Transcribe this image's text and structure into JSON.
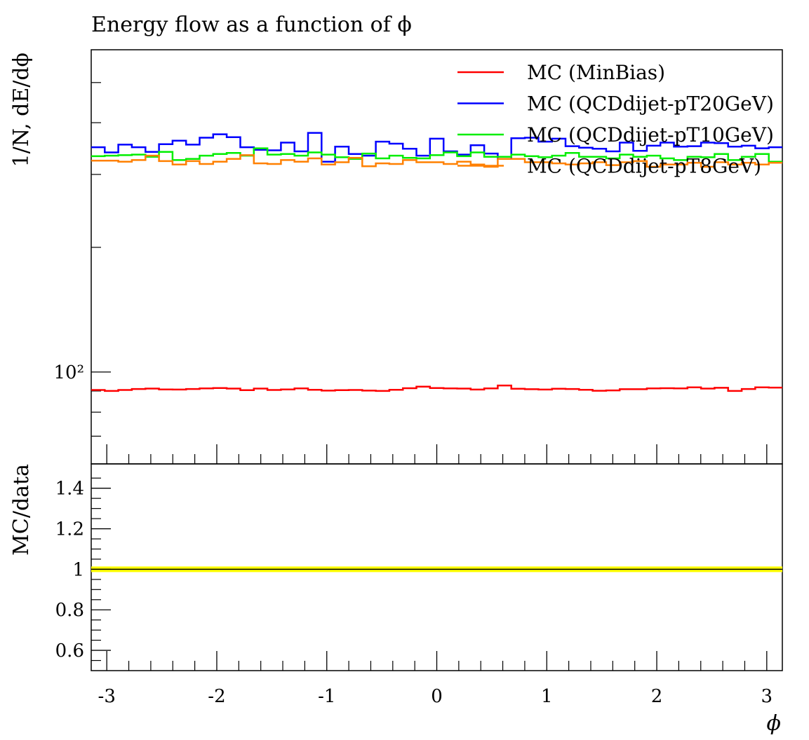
{
  "chart_data": {
    "type": "line",
    "title": "Energy flow as a function of ϕ",
    "xlabel": "ϕ",
    "x_ticks": [
      "-3",
      "-2",
      "-1",
      "0",
      "1",
      "2",
      "3"
    ],
    "x_range": [
      -3.1416,
      3.1416
    ],
    "bins": 50,
    "main_panel": {
      "ylabel": "1/N, dE/dϕ",
      "y_scale": "log",
      "ylim": [
        60,
        600
      ],
      "y_tick_label": "10²",
      "legend_position": "top-right",
      "series": [
        {
          "name": "MC (MinBias)",
          "color": "#ff0000",
          "values": [
            90.5,
            90,
            90.5,
            91,
            91.2,
            90.8,
            90.7,
            91,
            91.3,
            91.5,
            91.2,
            90.4,
            91.2,
            90.5,
            90.8,
            91.3,
            90.6,
            90.2,
            90.4,
            90.5,
            90.2,
            90,
            90.6,
            91.4,
            92.2,
            91.5,
            91.3,
            91.2,
            90.7,
            91.3,
            92.8,
            91.1,
            90.9,
            90.7,
            91.1,
            91,
            90.6,
            90.1,
            90.3,
            90.9,
            90.9,
            91.3,
            91.4,
            91.3,
            91.8,
            91.2,
            91.6,
            90,
            91,
            91.8,
            91.7
          ]
        },
        {
          "name": "MC (QCDdijet-pT20GeV)",
          "color": "#0000ff",
          "values": [
            349,
            339,
            354,
            349,
            340,
            355,
            362,
            354,
            368,
            375,
            369,
            349,
            344,
            343,
            358,
            341,
            378,
            322,
            350,
            336,
            333,
            360,
            356,
            346,
            333,
            366,
            341,
            335,
            353,
            337,
            327,
            367,
            368,
            360,
            366,
            351,
            348,
            346,
            341,
            358,
            342,
            352,
            358,
            350,
            351,
            358,
            357,
            350,
            352,
            347,
            349
          ]
        },
        {
          "name": "MC (QCDdijet-pT10GeV)",
          "color": "#00ee00",
          "values": [
            332,
            333,
            334,
            335,
            331,
            340,
            325,
            327,
            333,
            336,
            338,
            333,
            347,
            335,
            336,
            333,
            339,
            335,
            330,
            327,
            337,
            328,
            333,
            329,
            328,
            334,
            339,
            332,
            339,
            331,
            331,
            335,
            332,
            330,
            333,
            338,
            331,
            331,
            328,
            335,
            331,
            333,
            328,
            325,
            331,
            330,
            336,
            325,
            331,
            336,
            322
          ]
        },
        {
          "name": "MC (QCDdijet-pT8GeV)",
          "color": "#ff8000",
          "values": [
            324,
            324,
            322,
            325,
            333,
            323,
            317,
            323,
            318,
            322,
            327,
            334,
            319,
            318,
            325,
            322,
            328,
            317,
            321,
            329,
            314,
            319,
            318,
            325,
            321,
            321,
            318,
            322,
            317,
            313,
            327,
            327,
            321,
            321,
            319,
            317,
            319,
            321,
            316,
            321,
            323,
            313,
            317,
            317,
            320,
            313,
            321,
            317,
            320,
            317,
            320
          ]
        }
      ]
    },
    "ratio_panel": {
      "ylabel": "MC/data",
      "ylim": [
        0.5,
        1.52
      ],
      "y_ticks": [
        "0.6",
        "0.8",
        "1",
        "1.2",
        "1.4"
      ],
      "reference": 1.0,
      "band_color": "#ffff00"
    }
  }
}
